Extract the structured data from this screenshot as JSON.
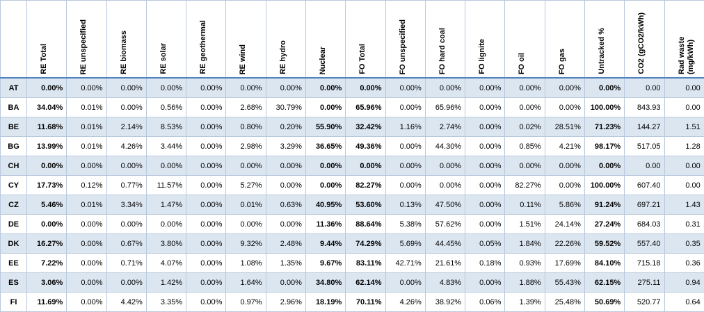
{
  "table": {
    "headers": [
      "RE Total",
      "RE unspecified",
      "RE biomass",
      "RE solar",
      "RE geothermal",
      "RE wind",
      "RE hydro",
      "Nuclear",
      "FO Total",
      "FO unspecified",
      "FO hard coal",
      "FO lignite",
      "FO oil",
      "FO gas",
      "Untracked %",
      "CO2 (gCO2/kWh)",
      "Rad waste (mg/kWh)"
    ],
    "rows": [
      {
        "label": "AT",
        "cells": [
          "0.00%",
          "0.00%",
          "0.00%",
          "0.00%",
          "0.00%",
          "0.00%",
          "0.00%",
          "0.00%",
          "0.00%",
          "0.00%",
          "0.00%",
          "0.00%",
          "0.00%",
          "0.00%",
          "0.00%",
          "0.00",
          "0.00"
        ]
      },
      {
        "label": "BA",
        "cells": [
          "34.04%",
          "0.01%",
          "0.00%",
          "0.56%",
          "0.00%",
          "2.68%",
          "30.79%",
          "0.00%",
          "65.96%",
          "0.00%",
          "65.96%",
          "0.00%",
          "0.00%",
          "0.00%",
          "100.00%",
          "843.93",
          "0.00"
        ]
      },
      {
        "label": "BE",
        "cells": [
          "11.68%",
          "0.01%",
          "2.14%",
          "8.53%",
          "0.00%",
          "0.80%",
          "0.20%",
          "55.90%",
          "32.42%",
          "1.16%",
          "2.74%",
          "0.00%",
          "0.02%",
          "28.51%",
          "71.23%",
          "144.27",
          "1.51"
        ]
      },
      {
        "label": "BG",
        "cells": [
          "13.99%",
          "0.01%",
          "4.26%",
          "3.44%",
          "0.00%",
          "2.98%",
          "3.29%",
          "36.65%",
          "49.36%",
          "0.00%",
          "44.30%",
          "0.00%",
          "0.85%",
          "4.21%",
          "98.17%",
          "517.05",
          "1.28"
        ]
      },
      {
        "label": "CH",
        "cells": [
          "0.00%",
          "0.00%",
          "0.00%",
          "0.00%",
          "0.00%",
          "0.00%",
          "0.00%",
          "0.00%",
          "0.00%",
          "0.00%",
          "0.00%",
          "0.00%",
          "0.00%",
          "0.00%",
          "0.00%",
          "0.00",
          "0.00"
        ]
      },
      {
        "label": "CY",
        "cells": [
          "17.73%",
          "0.12%",
          "0.77%",
          "11.57%",
          "0.00%",
          "5.27%",
          "0.00%",
          "0.00%",
          "82.27%",
          "0.00%",
          "0.00%",
          "0.00%",
          "82.27%",
          "0.00%",
          "100.00%",
          "607.40",
          "0.00"
        ]
      },
      {
        "label": "CZ",
        "cells": [
          "5.46%",
          "0.01%",
          "3.34%",
          "1.47%",
          "0.00%",
          "0.01%",
          "0.63%",
          "40.95%",
          "53.60%",
          "0.13%",
          "47.50%",
          "0.00%",
          "0.11%",
          "5.86%",
          "91.24%",
          "697.21",
          "1.43"
        ]
      },
      {
        "label": "DE",
        "cells": [
          "0.00%",
          "0.00%",
          "0.00%",
          "0.00%",
          "0.00%",
          "0.00%",
          "0.00%",
          "11.36%",
          "88.64%",
          "5.38%",
          "57.62%",
          "0.00%",
          "1.51%",
          "24.14%",
          "27.24%",
          "684.03",
          "0.31"
        ]
      },
      {
        "label": "DK",
        "cells": [
          "16.27%",
          "0.00%",
          "0.67%",
          "3.80%",
          "0.00%",
          "9.32%",
          "2.48%",
          "9.44%",
          "74.29%",
          "5.69%",
          "44.45%",
          "0.05%",
          "1.84%",
          "22.26%",
          "59.52%",
          "557.40",
          "0.35"
        ]
      },
      {
        "label": "EE",
        "cells": [
          "7.22%",
          "0.00%",
          "0.71%",
          "4.07%",
          "0.00%",
          "1.08%",
          "1.35%",
          "9.67%",
          "83.11%",
          "42.71%",
          "21.61%",
          "0.18%",
          "0.93%",
          "17.69%",
          "84.10%",
          "715.18",
          "0.36"
        ]
      },
      {
        "label": "ES",
        "cells": [
          "3.06%",
          "0.00%",
          "0.00%",
          "1.42%",
          "0.00%",
          "1.64%",
          "0.00%",
          "34.80%",
          "62.14%",
          "0.00%",
          "4.83%",
          "0.00%",
          "1.88%",
          "55.43%",
          "62.15%",
          "275.11",
          "0.94"
        ]
      },
      {
        "label": "FI",
        "cells": [
          "11.69%",
          "0.00%",
          "4.42%",
          "3.35%",
          "0.00%",
          "0.97%",
          "2.96%",
          "18.19%",
          "70.11%",
          "4.26%",
          "38.92%",
          "0.06%",
          "1.39%",
          "25.48%",
          "50.69%",
          "520.77",
          "0.64"
        ]
      }
    ]
  }
}
